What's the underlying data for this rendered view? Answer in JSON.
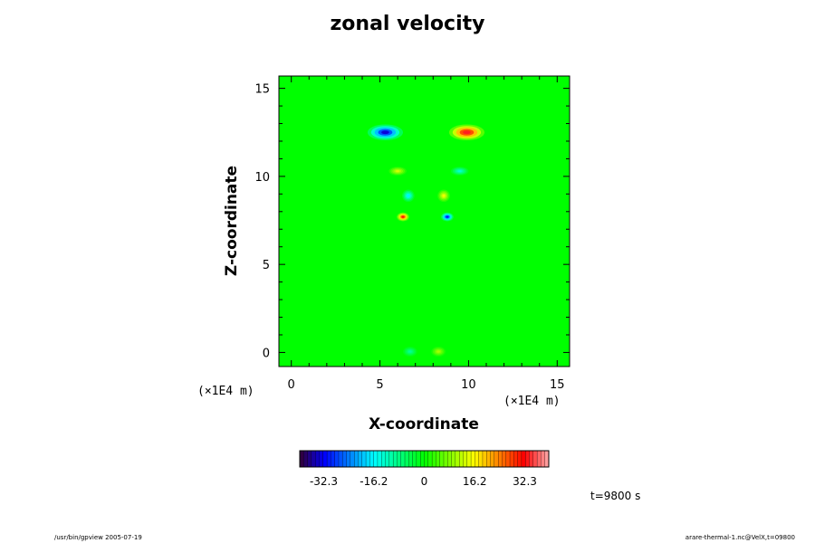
{
  "chart_data": {
    "type": "heatmap",
    "title": "zonal velocity",
    "xlabel": "X-coordinate",
    "ylabel": "Z-coordinate",
    "x_unit": "(×1E4 m)",
    "y_unit": "(×1E4 m)",
    "xlim": [
      -0.7,
      15.7
    ],
    "ylim": [
      -0.8,
      15.7
    ],
    "x_ticks": [
      0,
      5,
      10,
      15
    ],
    "y_ticks": [
      0,
      5,
      10,
      15
    ],
    "colorbar": {
      "range": [
        -40,
        40
      ],
      "tick_values": [
        -32.3,
        -16.2,
        0,
        16.2,
        32.3
      ],
      "tick_labels": [
        "-32.3",
        "-16.2",
        "0",
        "16.2",
        "32.3"
      ]
    },
    "blobs": [
      {
        "x": 5.3,
        "z": 12.5,
        "sx": 1.0,
        "sz": 0.45,
        "value": -36
      },
      {
        "x": 9.9,
        "z": 12.5,
        "sx": 1.0,
        "sz": 0.45,
        "value": 36
      },
      {
        "x": 6.0,
        "z": 10.3,
        "sx": 0.5,
        "sz": 0.25,
        "value": 14
      },
      {
        "x": 9.5,
        "z": 10.3,
        "sx": 0.5,
        "sz": 0.25,
        "value": -14
      },
      {
        "x": 6.6,
        "z": 8.9,
        "sx": 0.35,
        "sz": 0.35,
        "value": -18
      },
      {
        "x": 8.6,
        "z": 8.9,
        "sx": 0.35,
        "sz": 0.35,
        "value": 16
      },
      {
        "x": 6.3,
        "z": 7.7,
        "sx": 0.35,
        "sz": 0.25,
        "value": 33
      },
      {
        "x": 8.8,
        "z": 7.7,
        "sx": 0.35,
        "sz": 0.25,
        "value": -33
      },
      {
        "x": 6.7,
        "z": 0.05,
        "sx": 0.4,
        "sz": 0.28,
        "value": -10
      },
      {
        "x": 8.3,
        "z": 0.05,
        "sx": 0.4,
        "sz": 0.28,
        "value": 11
      }
    ]
  },
  "time_label": "t=9800 s",
  "footer_left": "/usr/bin/gpview 2005-07-19",
  "footer_right": "arare-thermal-1.nc@VelX,t=09800"
}
